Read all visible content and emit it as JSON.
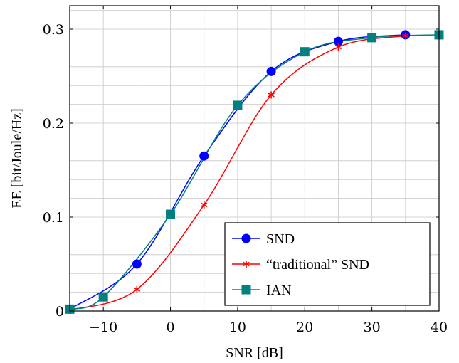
{
  "chart_data": {
    "type": "line",
    "xlabel": "SNR [dB]",
    "ylabel": "EE [bit/Joule/Hz]",
    "xlim": [
      -15,
      40
    ],
    "ylim": [
      0,
      0.325
    ],
    "xticks": [
      -10,
      0,
      10,
      20,
      30,
      40
    ],
    "xtick_labels": [
      "−10",
      "0",
      "10",
      "20",
      "30",
      "40"
    ],
    "yticks": [
      0,
      0.1,
      0.2,
      0.3
    ],
    "ytick_labels": [
      "0",
      "0.1",
      "0.2",
      "0.3"
    ],
    "grid": true,
    "legend_position": "bottom-right",
    "series": [
      {
        "name": "SND",
        "color": "#0000ff",
        "marker": "circle",
        "x": [
          -15,
          -5,
          5,
          15,
          25,
          35
        ],
        "y": [
          0.002,
          0.05,
          0.165,
          0.255,
          0.287,
          0.294
        ]
      },
      {
        "name": "“traditional” SND",
        "color": "#ff0000",
        "marker": "star",
        "x": [
          -15,
          -5,
          5,
          15,
          25,
          35
        ],
        "y": [
          0.001,
          0.023,
          0.113,
          0.23,
          0.281,
          0.293
        ]
      },
      {
        "name": "IAN",
        "color": "#00807f",
        "marker": "square",
        "x": [
          -15,
          -10,
          0,
          10,
          20,
          30,
          40
        ],
        "y": [
          0.002,
          0.015,
          0.103,
          0.219,
          0.276,
          0.291,
          0.294
        ]
      }
    ]
  }
}
